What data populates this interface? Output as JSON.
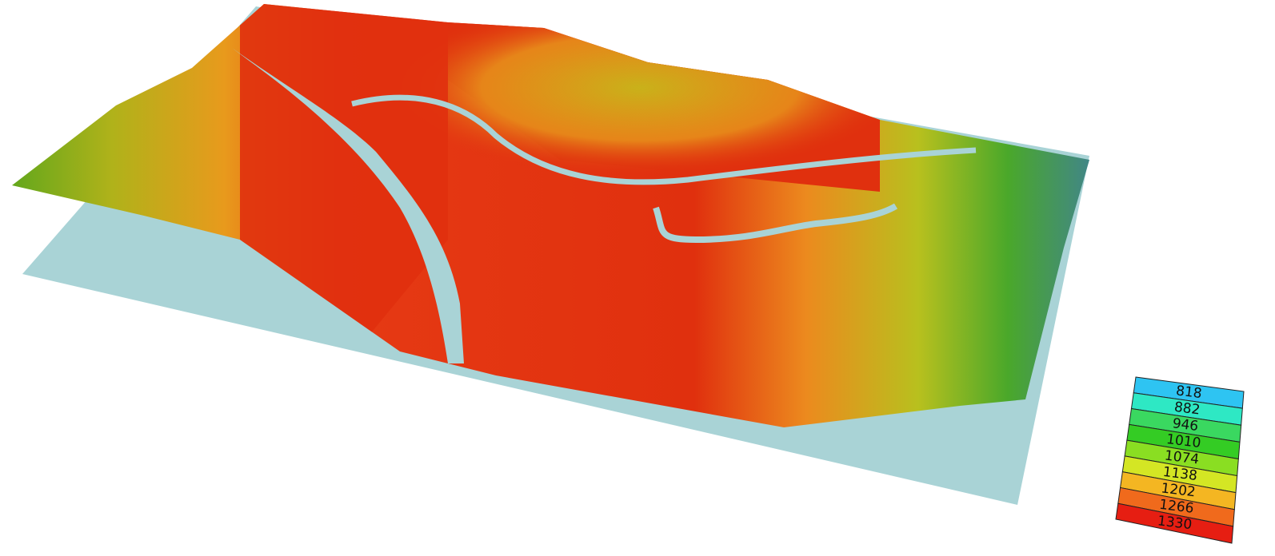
{
  "legend": {
    "entries": [
      {
        "label": "818",
        "color": "#2ec4f2"
      },
      {
        "label": "882",
        "color": "#2ee8c4"
      },
      {
        "label": "946",
        "color": "#3ad860"
      },
      {
        "label": "1010",
        "color": "#34cc24"
      },
      {
        "label": "1074",
        "color": "#8ade22"
      },
      {
        "label": "1138",
        "color": "#d4e624"
      },
      {
        "label": "1202",
        "color": "#f4b622"
      },
      {
        "label": "1266",
        "color": "#f06a1c"
      },
      {
        "label": "1330",
        "color": "#e61e12"
      }
    ]
  }
}
